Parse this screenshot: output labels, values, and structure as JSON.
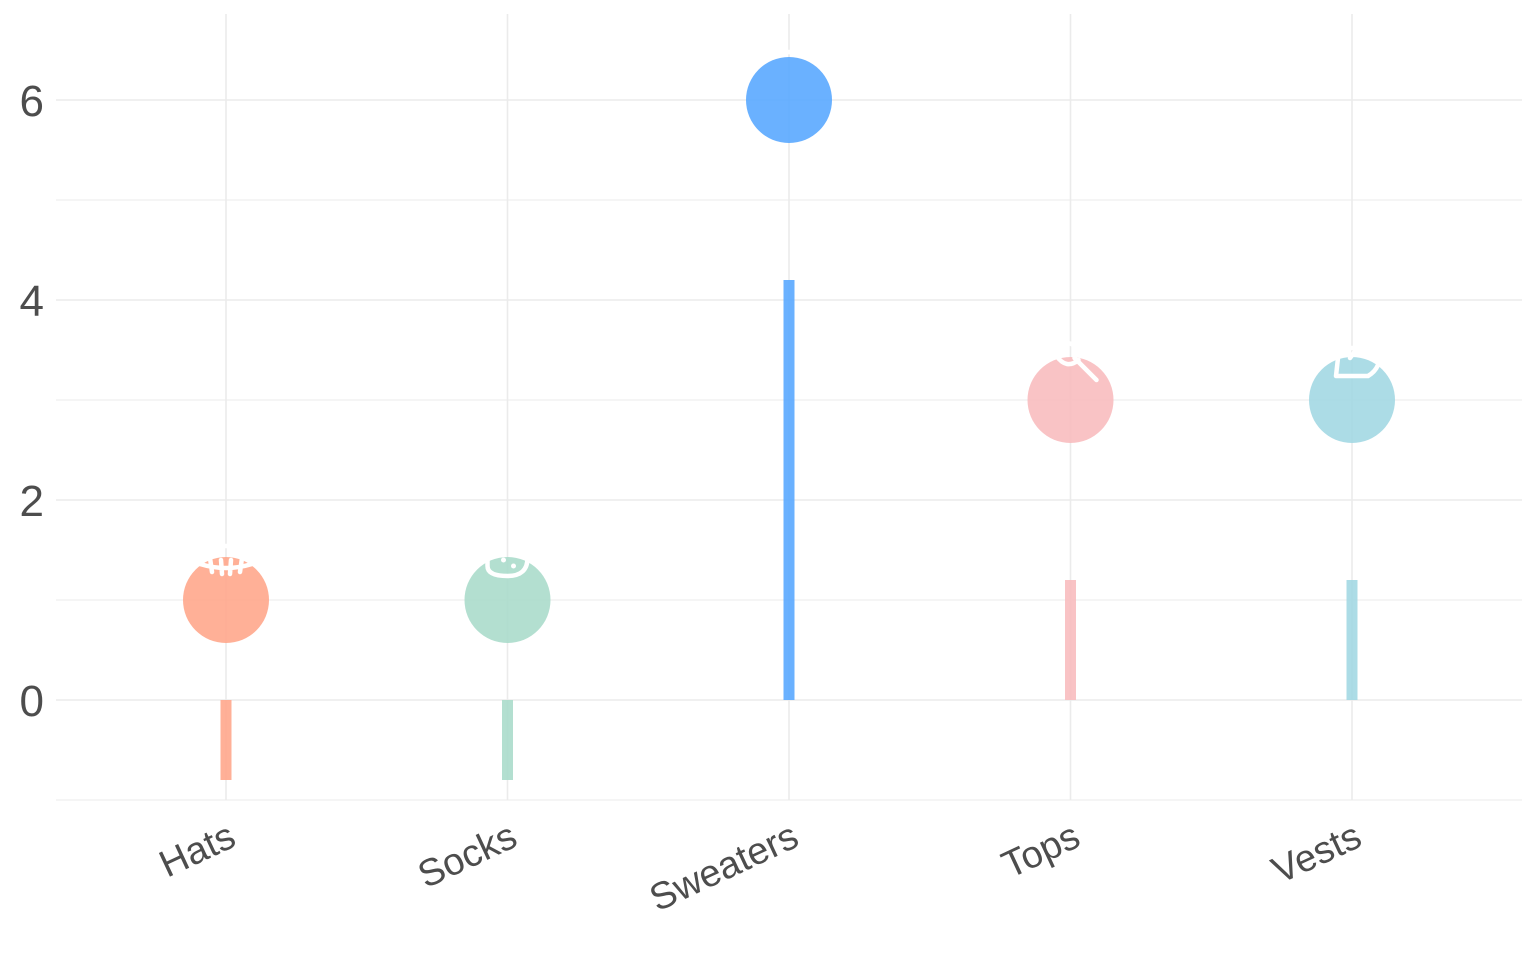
{
  "chart_data": {
    "type": "lollipop",
    "categories": [
      "Hats",
      "Socks",
      "Sweaters",
      "Tops",
      "Vests"
    ],
    "values": [
      1,
      1,
      6,
      3,
      3
    ],
    "stems": [
      {
        "from": 0,
        "to": -0.8
      },
      {
        "from": 0,
        "to": -0.8
      },
      {
        "from": 0,
        "to": 4.2
      },
      {
        "from": 0,
        "to": 1.2
      },
      {
        "from": 0,
        "to": 1.2
      }
    ],
    "colors": [
      "#ffa78c",
      "#abdbcb",
      "#5aa8ff",
      "#f8bcbf",
      "#a3d8e3"
    ],
    "icons": [
      "hat-icon",
      "sock-icon",
      "sweater-icon",
      "top-icon",
      "vest-icon"
    ],
    "y_ticks": [
      "0",
      "2",
      "4",
      "6"
    ],
    "y_tick_values": [
      0,
      2,
      4,
      6
    ],
    "ylim": [
      -1,
      6.87
    ],
    "grid": true,
    "legend": "none",
    "title": "",
    "xlabel": "",
    "ylabel": ""
  }
}
